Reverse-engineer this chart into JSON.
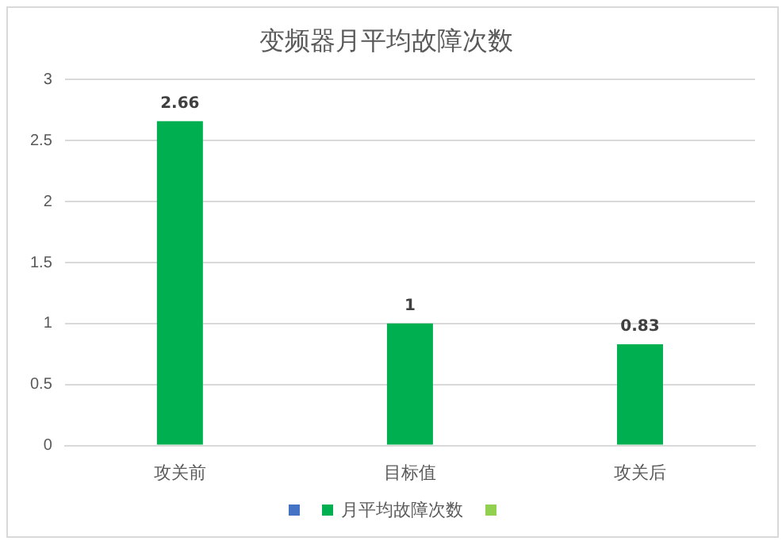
{
  "chart_data": {
    "type": "bar",
    "title": "变频器月平均故障次数",
    "categories": [
      "攻关前",
      "目标值",
      "攻关后"
    ],
    "series": [
      {
        "color": "#4472c4",
        "values": [
          null,
          null,
          null
        ]
      },
      {
        "name": "月平均故障次数",
        "color": "#00b050",
        "values": [
          2.66,
          1,
          0.83
        ]
      },
      {
        "color": "#92d050",
        "values": [
          null,
          null,
          null
        ]
      }
    ],
    "ylim": [
      0,
      3
    ],
    "yticks": [
      0,
      0.5,
      1,
      1.5,
      2,
      2.5,
      3
    ],
    "grid": "y",
    "legend": "bottom",
    "data_labels": true
  }
}
